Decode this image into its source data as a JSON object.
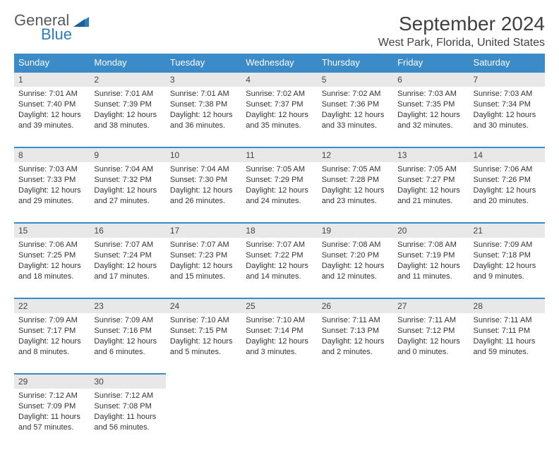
{
  "logo": {
    "word1": "General",
    "word2": "Blue"
  },
  "title": "September 2024",
  "location": "West Park, Florida, United States",
  "colors": {
    "header_bg": "#3b8bc8",
    "header_text": "#ffffff",
    "daynum_bg": "#e8e8e8",
    "daynum_border": "#3b8bc8",
    "body_text": "#333333",
    "title_text": "#404040",
    "logo_gray": "#5a5a5a",
    "logo_blue": "#2f7bbf",
    "page_bg": "#ffffff"
  },
  "weekdays": [
    "Sunday",
    "Monday",
    "Tuesday",
    "Wednesday",
    "Thursday",
    "Friday",
    "Saturday"
  ],
  "weeks": [
    [
      {
        "n": "1",
        "sr": "Sunrise: 7:01 AM",
        "ss": "Sunset: 7:40 PM",
        "d1": "Daylight: 12 hours",
        "d2": "and 39 minutes."
      },
      {
        "n": "2",
        "sr": "Sunrise: 7:01 AM",
        "ss": "Sunset: 7:39 PM",
        "d1": "Daylight: 12 hours",
        "d2": "and 38 minutes."
      },
      {
        "n": "3",
        "sr": "Sunrise: 7:01 AM",
        "ss": "Sunset: 7:38 PM",
        "d1": "Daylight: 12 hours",
        "d2": "and 36 minutes."
      },
      {
        "n": "4",
        "sr": "Sunrise: 7:02 AM",
        "ss": "Sunset: 7:37 PM",
        "d1": "Daylight: 12 hours",
        "d2": "and 35 minutes."
      },
      {
        "n": "5",
        "sr": "Sunrise: 7:02 AM",
        "ss": "Sunset: 7:36 PM",
        "d1": "Daylight: 12 hours",
        "d2": "and 33 minutes."
      },
      {
        "n": "6",
        "sr": "Sunrise: 7:03 AM",
        "ss": "Sunset: 7:35 PM",
        "d1": "Daylight: 12 hours",
        "d2": "and 32 minutes."
      },
      {
        "n": "7",
        "sr": "Sunrise: 7:03 AM",
        "ss": "Sunset: 7:34 PM",
        "d1": "Daylight: 12 hours",
        "d2": "and 30 minutes."
      }
    ],
    [
      {
        "n": "8",
        "sr": "Sunrise: 7:03 AM",
        "ss": "Sunset: 7:33 PM",
        "d1": "Daylight: 12 hours",
        "d2": "and 29 minutes."
      },
      {
        "n": "9",
        "sr": "Sunrise: 7:04 AM",
        "ss": "Sunset: 7:32 PM",
        "d1": "Daylight: 12 hours",
        "d2": "and 27 minutes."
      },
      {
        "n": "10",
        "sr": "Sunrise: 7:04 AM",
        "ss": "Sunset: 7:30 PM",
        "d1": "Daylight: 12 hours",
        "d2": "and 26 minutes."
      },
      {
        "n": "11",
        "sr": "Sunrise: 7:05 AM",
        "ss": "Sunset: 7:29 PM",
        "d1": "Daylight: 12 hours",
        "d2": "and 24 minutes."
      },
      {
        "n": "12",
        "sr": "Sunrise: 7:05 AM",
        "ss": "Sunset: 7:28 PM",
        "d1": "Daylight: 12 hours",
        "d2": "and 23 minutes."
      },
      {
        "n": "13",
        "sr": "Sunrise: 7:05 AM",
        "ss": "Sunset: 7:27 PM",
        "d1": "Daylight: 12 hours",
        "d2": "and 21 minutes."
      },
      {
        "n": "14",
        "sr": "Sunrise: 7:06 AM",
        "ss": "Sunset: 7:26 PM",
        "d1": "Daylight: 12 hours",
        "d2": "and 20 minutes."
      }
    ],
    [
      {
        "n": "15",
        "sr": "Sunrise: 7:06 AM",
        "ss": "Sunset: 7:25 PM",
        "d1": "Daylight: 12 hours",
        "d2": "and 18 minutes."
      },
      {
        "n": "16",
        "sr": "Sunrise: 7:07 AM",
        "ss": "Sunset: 7:24 PM",
        "d1": "Daylight: 12 hours",
        "d2": "and 17 minutes."
      },
      {
        "n": "17",
        "sr": "Sunrise: 7:07 AM",
        "ss": "Sunset: 7:23 PM",
        "d1": "Daylight: 12 hours",
        "d2": "and 15 minutes."
      },
      {
        "n": "18",
        "sr": "Sunrise: 7:07 AM",
        "ss": "Sunset: 7:22 PM",
        "d1": "Daylight: 12 hours",
        "d2": "and 14 minutes."
      },
      {
        "n": "19",
        "sr": "Sunrise: 7:08 AM",
        "ss": "Sunset: 7:20 PM",
        "d1": "Daylight: 12 hours",
        "d2": "and 12 minutes."
      },
      {
        "n": "20",
        "sr": "Sunrise: 7:08 AM",
        "ss": "Sunset: 7:19 PM",
        "d1": "Daylight: 12 hours",
        "d2": "and 11 minutes."
      },
      {
        "n": "21",
        "sr": "Sunrise: 7:09 AM",
        "ss": "Sunset: 7:18 PM",
        "d1": "Daylight: 12 hours",
        "d2": "and 9 minutes."
      }
    ],
    [
      {
        "n": "22",
        "sr": "Sunrise: 7:09 AM",
        "ss": "Sunset: 7:17 PM",
        "d1": "Daylight: 12 hours",
        "d2": "and 8 minutes."
      },
      {
        "n": "23",
        "sr": "Sunrise: 7:09 AM",
        "ss": "Sunset: 7:16 PM",
        "d1": "Daylight: 12 hours",
        "d2": "and 6 minutes."
      },
      {
        "n": "24",
        "sr": "Sunrise: 7:10 AM",
        "ss": "Sunset: 7:15 PM",
        "d1": "Daylight: 12 hours",
        "d2": "and 5 minutes."
      },
      {
        "n": "25",
        "sr": "Sunrise: 7:10 AM",
        "ss": "Sunset: 7:14 PM",
        "d1": "Daylight: 12 hours",
        "d2": "and 3 minutes."
      },
      {
        "n": "26",
        "sr": "Sunrise: 7:11 AM",
        "ss": "Sunset: 7:13 PM",
        "d1": "Daylight: 12 hours",
        "d2": "and 2 minutes."
      },
      {
        "n": "27",
        "sr": "Sunrise: 7:11 AM",
        "ss": "Sunset: 7:12 PM",
        "d1": "Daylight: 12 hours",
        "d2": "and 0 minutes."
      },
      {
        "n": "28",
        "sr": "Sunrise: 7:11 AM",
        "ss": "Sunset: 7:11 PM",
        "d1": "Daylight: 11 hours",
        "d2": "and 59 minutes."
      }
    ],
    [
      {
        "n": "29",
        "sr": "Sunrise: 7:12 AM",
        "ss": "Sunset: 7:09 PM",
        "d1": "Daylight: 11 hours",
        "d2": "and 57 minutes."
      },
      {
        "n": "30",
        "sr": "Sunrise: 7:12 AM",
        "ss": "Sunset: 7:08 PM",
        "d1": "Daylight: 11 hours",
        "d2": "and 56 minutes."
      },
      null,
      null,
      null,
      null,
      null
    ]
  ]
}
